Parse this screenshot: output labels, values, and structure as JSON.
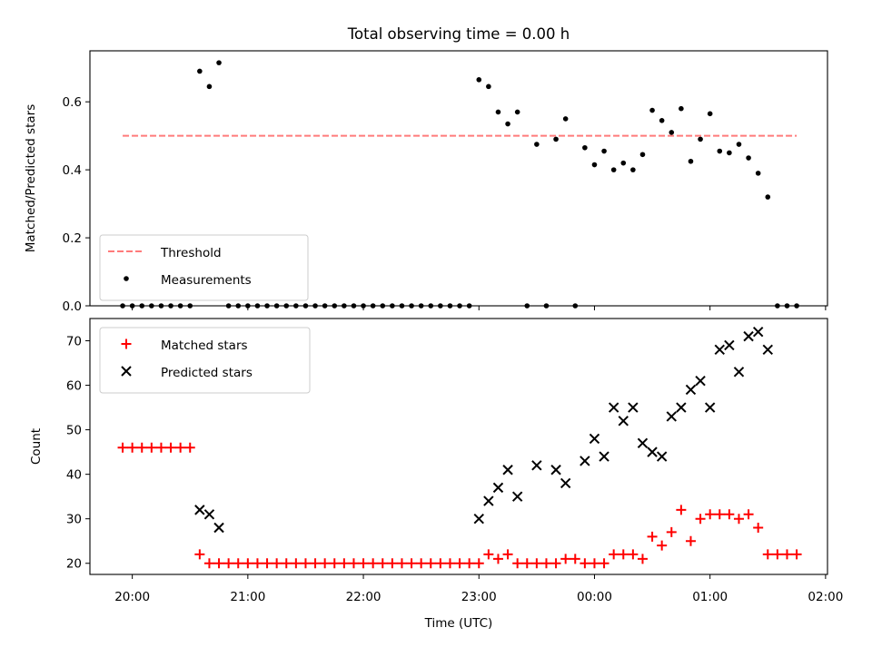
{
  "figure": {
    "title": "Total observing time = 0.00 h",
    "x_axis_label": "Time (UTC)"
  },
  "colors": {
    "threshold": "#ff7b7b",
    "measurements": "#000000",
    "matched": "#ff0000",
    "predicted": "#000000"
  },
  "chart_data": [
    {
      "type": "scatter",
      "panel": "top",
      "ylabel": "Matched/Predicted stars",
      "xlim": [
        "19:38",
        "02:01"
      ],
      "ylim": [
        0,
        0.75
      ],
      "x_ticks": [
        "20:00",
        "21:00",
        "22:00",
        "23:00",
        "00:00",
        "01:00",
        "02:00"
      ],
      "y_ticks": [
        "0.0",
        "0.2",
        "0.4",
        "0.6"
      ],
      "legend_position": "lower-left",
      "threshold": {
        "name": "Threshold",
        "value": 0.5,
        "x_start": "19:55",
        "x_end": "01:45",
        "style": "dashed"
      },
      "series": [
        {
          "name": "Measurements",
          "marker": "dot",
          "points": [
            [
              "19:55",
              0.0
            ],
            [
              "20:00",
              0.0
            ],
            [
              "20:05",
              0.0
            ],
            [
              "20:10",
              0.0
            ],
            [
              "20:15",
              0.0
            ],
            [
              "20:20",
              0.0
            ],
            [
              "20:25",
              0.0
            ],
            [
              "20:30",
              0.0
            ],
            [
              "20:35",
              0.69
            ],
            [
              "20:40",
              0.645
            ],
            [
              "20:45",
              0.715
            ],
            [
              "20:50",
              0.0
            ],
            [
              "20:55",
              0.0
            ],
            [
              "21:00",
              0.0
            ],
            [
              "21:05",
              0.0
            ],
            [
              "21:10",
              0.0
            ],
            [
              "21:15",
              0.0
            ],
            [
              "21:20",
              0.0
            ],
            [
              "21:25",
              0.0
            ],
            [
              "21:30",
              0.0
            ],
            [
              "21:35",
              0.0
            ],
            [
              "21:40",
              0.0
            ],
            [
              "21:45",
              0.0
            ],
            [
              "21:50",
              0.0
            ],
            [
              "21:55",
              0.0
            ],
            [
              "22:00",
              0.0
            ],
            [
              "22:05",
              0.0
            ],
            [
              "22:10",
              0.0
            ],
            [
              "22:15",
              0.0
            ],
            [
              "22:20",
              0.0
            ],
            [
              "22:25",
              0.0
            ],
            [
              "22:30",
              0.0
            ],
            [
              "22:35",
              0.0
            ],
            [
              "22:40",
              0.0
            ],
            [
              "22:45",
              0.0
            ],
            [
              "22:50",
              0.0
            ],
            [
              "22:55",
              0.0
            ],
            [
              "23:00",
              0.665
            ],
            [
              "23:05",
              0.645
            ],
            [
              "23:10",
              0.57
            ],
            [
              "23:15",
              0.535
            ],
            [
              "23:20",
              0.57
            ],
            [
              "23:25",
              0.0
            ],
            [
              "23:30",
              0.475
            ],
            [
              "23:35",
              0.0
            ],
            [
              "23:40",
              0.49
            ],
            [
              "23:45",
              0.55
            ],
            [
              "23:50",
              0.0
            ],
            [
              "23:55",
              0.465
            ],
            [
              "00:00",
              0.415
            ],
            [
              "00:05",
              0.455
            ],
            [
              "00:10",
              0.4
            ],
            [
              "00:15",
              0.42
            ],
            [
              "00:20",
              0.4
            ],
            [
              "00:25",
              0.445
            ],
            [
              "00:30",
              0.575
            ],
            [
              "00:35",
              0.545
            ],
            [
              "00:40",
              0.51
            ],
            [
              "00:45",
              0.58
            ],
            [
              "00:50",
              0.425
            ],
            [
              "00:55",
              0.49
            ],
            [
              "01:00",
              0.565
            ],
            [
              "01:05",
              0.455
            ],
            [
              "01:10",
              0.45
            ],
            [
              "01:15",
              0.475
            ],
            [
              "01:20",
              0.435
            ],
            [
              "01:25",
              0.39
            ],
            [
              "01:30",
              0.32
            ],
            [
              "01:35",
              0.0
            ],
            [
              "01:40",
              0.0
            ],
            [
              "01:45",
              0.0
            ]
          ]
        }
      ]
    },
    {
      "type": "scatter",
      "panel": "bottom",
      "ylabel": "Count",
      "xlabel": "Time (UTC)",
      "xlim": [
        "19:38",
        "02:01"
      ],
      "ylim": [
        17.5,
        75
      ],
      "x_ticks": [
        "20:00",
        "21:00",
        "22:00",
        "23:00",
        "00:00",
        "01:00",
        "02:00"
      ],
      "y_ticks": [
        "20",
        "30",
        "40",
        "50",
        "60",
        "70"
      ],
      "legend_position": "upper-left",
      "series": [
        {
          "name": "Matched stars",
          "marker": "plus",
          "points": [
            [
              "19:55",
              46
            ],
            [
              "20:00",
              46
            ],
            [
              "20:05",
              46
            ],
            [
              "20:10",
              46
            ],
            [
              "20:15",
              46
            ],
            [
              "20:20",
              46
            ],
            [
              "20:25",
              46
            ],
            [
              "20:30",
              46
            ],
            [
              "20:35",
              22
            ],
            [
              "20:40",
              20
            ],
            [
              "20:45",
              20
            ],
            [
              "20:50",
              20
            ],
            [
              "20:55",
              20
            ],
            [
              "21:00",
              20
            ],
            [
              "21:05",
              20
            ],
            [
              "21:10",
              20
            ],
            [
              "21:15",
              20
            ],
            [
              "21:20",
              20
            ],
            [
              "21:25",
              20
            ],
            [
              "21:30",
              20
            ],
            [
              "21:35",
              20
            ],
            [
              "21:40",
              20
            ],
            [
              "21:45",
              20
            ],
            [
              "21:50",
              20
            ],
            [
              "21:55",
              20
            ],
            [
              "22:00",
              20
            ],
            [
              "22:05",
              20
            ],
            [
              "22:10",
              20
            ],
            [
              "22:15",
              20
            ],
            [
              "22:20",
              20
            ],
            [
              "22:25",
              20
            ],
            [
              "22:30",
              20
            ],
            [
              "22:35",
              20
            ],
            [
              "22:40",
              20
            ],
            [
              "22:45",
              20
            ],
            [
              "22:50",
              20
            ],
            [
              "22:55",
              20
            ],
            [
              "23:00",
              20
            ],
            [
              "23:05",
              22
            ],
            [
              "23:10",
              21
            ],
            [
              "23:15",
              22
            ],
            [
              "23:20",
              20
            ],
            [
              "23:25",
              20
            ],
            [
              "23:30",
              20
            ],
            [
              "23:35",
              20
            ],
            [
              "23:40",
              20
            ],
            [
              "23:45",
              21
            ],
            [
              "23:50",
              21
            ],
            [
              "23:55",
              20
            ],
            [
              "00:00",
              20
            ],
            [
              "00:05",
              20
            ],
            [
              "00:10",
              22
            ],
            [
              "00:15",
              22
            ],
            [
              "00:20",
              22
            ],
            [
              "00:25",
              21
            ],
            [
              "00:30",
              26
            ],
            [
              "00:35",
              24
            ],
            [
              "00:40",
              27
            ],
            [
              "00:45",
              32
            ],
            [
              "00:50",
              25
            ],
            [
              "00:55",
              30
            ],
            [
              "01:00",
              31
            ],
            [
              "01:05",
              31
            ],
            [
              "01:10",
              31
            ],
            [
              "01:15",
              30
            ],
            [
              "01:20",
              31
            ],
            [
              "01:25",
              28
            ],
            [
              "01:30",
              22
            ],
            [
              "01:35",
              22
            ],
            [
              "01:40",
              22
            ],
            [
              "01:45",
              22
            ]
          ]
        },
        {
          "name": "Predicted stars",
          "marker": "x",
          "points": [
            [
              "20:35",
              32
            ],
            [
              "20:40",
              31
            ],
            [
              "20:45",
              28
            ],
            [
              "23:00",
              30
            ],
            [
              "23:05",
              34
            ],
            [
              "23:10",
              37
            ],
            [
              "23:15",
              41
            ],
            [
              "23:20",
              35
            ],
            [
              "23:30",
              42
            ],
            [
              "23:40",
              41
            ],
            [
              "23:45",
              38
            ],
            [
              "23:55",
              43
            ],
            [
              "00:00",
              48
            ],
            [
              "00:05",
              44
            ],
            [
              "00:10",
              55
            ],
            [
              "00:15",
              52
            ],
            [
              "00:20",
              55
            ],
            [
              "00:25",
              47
            ],
            [
              "00:30",
              45
            ],
            [
              "00:35",
              44
            ],
            [
              "00:40",
              53
            ],
            [
              "00:45",
              55
            ],
            [
              "00:50",
              59
            ],
            [
              "00:55",
              61
            ],
            [
              "01:00",
              55
            ],
            [
              "01:05",
              68
            ],
            [
              "01:10",
              69
            ],
            [
              "01:15",
              63
            ],
            [
              "01:20",
              71
            ],
            [
              "01:25",
              72
            ],
            [
              "01:30",
              68
            ]
          ]
        }
      ]
    }
  ]
}
